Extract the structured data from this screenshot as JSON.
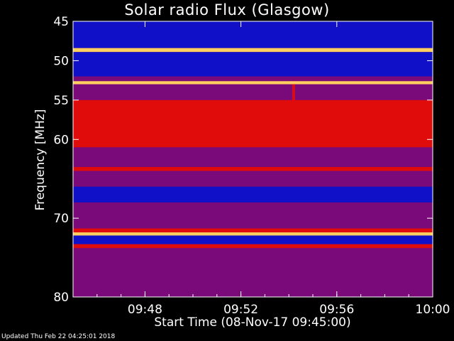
{
  "chart_data": {
    "type": "heatmap",
    "title": "Solar radio Flux (Glasgow)",
    "xlabel": "Start Time (08-Nov-17 09:45:00)",
    "ylabel": "Frequency [MHz]",
    "x_ticks": [
      "09:48",
      "09:52",
      "09:56",
      "10:00"
    ],
    "x_tick_minutes": [
      48,
      52,
      56,
      60
    ],
    "xlim_minutes": [
      45,
      60
    ],
    "y_ticks": [
      45,
      50,
      55,
      60,
      70,
      80
    ],
    "ylim": [
      45,
      80
    ],
    "colors": {
      "low": "#1010c8",
      "mid": "#7a0a7a",
      "high": "#e00c0c",
      "peak": "#ffd060"
    },
    "bands": [
      {
        "f0": 45.0,
        "f1": 45.6,
        "level": "low"
      },
      {
        "f0": 45.6,
        "f1": 48.4,
        "level": "low"
      },
      {
        "f0": 48.4,
        "f1": 48.9,
        "level": "peak"
      },
      {
        "f0": 48.9,
        "f1": 52.0,
        "level": "low"
      },
      {
        "f0": 52.0,
        "f1": 52.6,
        "level": "mid"
      },
      {
        "f0": 52.6,
        "f1": 53.0,
        "level": "peak"
      },
      {
        "f0": 53.0,
        "f1": 55.0,
        "level": "mid"
      },
      {
        "f0": 55.0,
        "f1": 61.0,
        "level": "high"
      },
      {
        "f0": 61.0,
        "f1": 63.5,
        "level": "mid"
      },
      {
        "f0": 63.5,
        "f1": 64.0,
        "level": "high"
      },
      {
        "f0": 64.0,
        "f1": 66.0,
        "level": "mid"
      },
      {
        "f0": 66.0,
        "f1": 68.0,
        "level": "low"
      },
      {
        "f0": 68.0,
        "f1": 71.3,
        "level": "mid"
      },
      {
        "f0": 71.3,
        "f1": 71.8,
        "level": "high"
      },
      {
        "f0": 71.8,
        "f1": 72.2,
        "level": "peak"
      },
      {
        "f0": 72.2,
        "f1": 73.3,
        "level": "low"
      },
      {
        "f0": 73.3,
        "f1": 73.8,
        "level": "high"
      },
      {
        "f0": 73.8,
        "f1": 80.0,
        "level": "mid"
      }
    ],
    "burst_minute": 54.2
  },
  "footer": "Updated Thu Feb 22 04:25:01 2018"
}
